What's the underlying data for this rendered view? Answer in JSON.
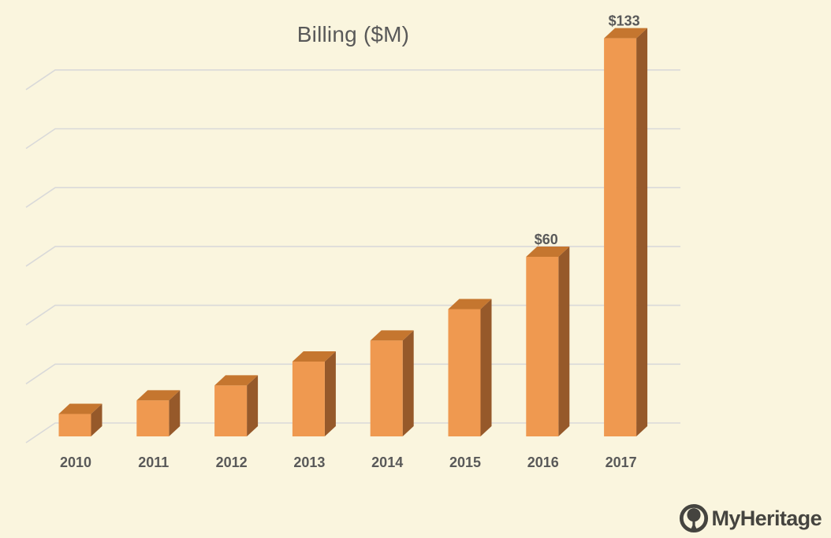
{
  "chart_data": {
    "type": "bar",
    "style": "3d-column",
    "title": "Billing ($M)",
    "categories": [
      "2010",
      "2011",
      "2012",
      "2013",
      "2014",
      "2015",
      "2016",
      "2017"
    ],
    "values": [
      7.5,
      12,
      17,
      25,
      32,
      42.5,
      60,
      133
    ],
    "data_labels": [
      "",
      "",
      "",
      "",
      "",
      "",
      "$60",
      "$133"
    ],
    "gridline_values": [
      0,
      20,
      40,
      60,
      80,
      100,
      120
    ],
    "ylim": [
      0,
      140
    ],
    "grid": true,
    "legend": false,
    "xlabel": "",
    "ylabel": "",
    "colors": {
      "bar_front": "#EF9950",
      "bar_top": "#C5762F",
      "bar_side": "#96592A",
      "gridline": "#D9D9D9",
      "text": "#595959",
      "background": "#FAF5DE"
    }
  },
  "branding": {
    "name": "MyHeritage",
    "color": "#45443F"
  }
}
